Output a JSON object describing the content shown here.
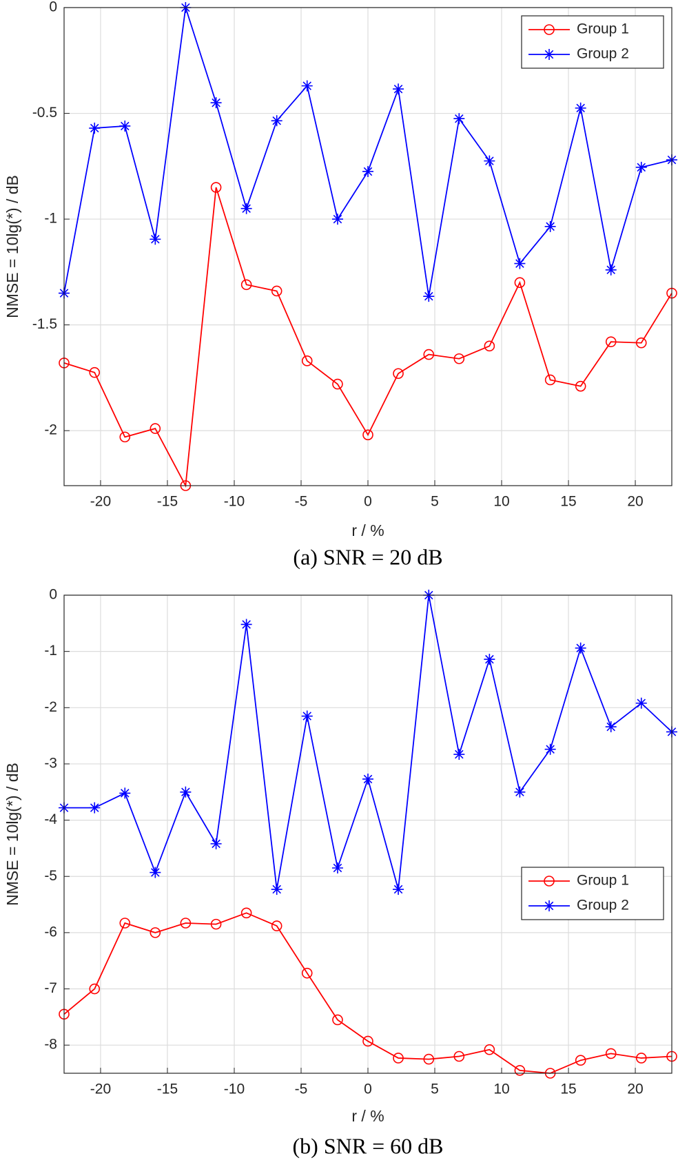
{
  "chart_data": [
    {
      "type": "line",
      "caption": "(a) SNR = 20 dB",
      "xlabel": "r / %",
      "ylabel": "NMSE = 10lg(*) / dB",
      "x": [
        -22.73,
        -20.45,
        -18.18,
        -15.91,
        -13.64,
        -11.36,
        -9.09,
        -6.82,
        -4.55,
        -2.27,
        0,
        2.27,
        4.55,
        6.82,
        9.09,
        11.36,
        13.64,
        15.91,
        18.18,
        20.45,
        22.73
      ],
      "xlim": [
        -22.73,
        22.73
      ],
      "xticks": [
        -20,
        -15,
        -10,
        -5,
        0,
        5,
        10,
        15,
        20
      ],
      "ylim": [
        -2.26,
        0
      ],
      "yticks": [
        -2,
        -1.5,
        -1,
        -0.5,
        0
      ],
      "grid": true,
      "legend": "northeast",
      "series": [
        {
          "name": "Group 1",
          "color": "#ff0000",
          "marker": "o",
          "values": [
            -1.68,
            -1.725,
            -2.03,
            -1.99,
            -2.26,
            -0.85,
            -1.31,
            -1.34,
            -1.67,
            -1.78,
            -2.02,
            -1.73,
            -1.64,
            -1.66,
            -1.6,
            -1.3,
            -1.76,
            -1.79,
            -1.58,
            -1.585,
            -1.35
          ]
        },
        {
          "name": "Group 2",
          "color": "#0000ff",
          "marker": "*",
          "values": [
            -1.35,
            -0.57,
            -0.56,
            -1.095,
            0,
            -0.45,
            -0.95,
            -0.535,
            -0.37,
            -1.0,
            -0.775,
            -0.385,
            -1.365,
            -0.525,
            -0.725,
            -1.21,
            -1.035,
            -0.475,
            -1.24,
            -0.755,
            -0.72
          ]
        }
      ]
    },
    {
      "type": "line",
      "caption": "(b) SNR = 60 dB",
      "xlabel": "r / %",
      "ylabel": "NMSE = 10lg(*) / dB",
      "x": [
        -22.73,
        -20.45,
        -18.18,
        -15.91,
        -13.64,
        -11.36,
        -9.09,
        -6.82,
        -4.55,
        -2.27,
        0,
        2.27,
        4.55,
        6.82,
        9.09,
        11.36,
        13.64,
        15.91,
        18.18,
        20.45,
        22.73
      ],
      "xlim": [
        -22.73,
        22.73
      ],
      "xticks": [
        -20,
        -15,
        -10,
        -5,
        0,
        5,
        10,
        15,
        20
      ],
      "ylim": [
        -8.5,
        0
      ],
      "yticks": [
        -8,
        -7,
        -6,
        -5,
        -4,
        -3,
        -2,
        -1,
        0
      ],
      "grid": true,
      "legend": "east",
      "series": [
        {
          "name": "Group 1",
          "color": "#ff0000",
          "marker": "o",
          "values": [
            -7.45,
            -7.0,
            -5.83,
            -6.0,
            -5.83,
            -5.85,
            -5.65,
            -5.88,
            -6.72,
            -7.55,
            -7.93,
            -8.23,
            -8.25,
            -8.2,
            -8.08,
            -8.45,
            -8.5,
            -8.27,
            -8.15,
            -8.23,
            -8.2
          ]
        },
        {
          "name": "Group 2",
          "color": "#0000ff",
          "marker": "*",
          "values": [
            -3.78,
            -3.78,
            -3.52,
            -4.93,
            -3.5,
            -4.42,
            -0.52,
            -5.23,
            -2.15,
            -4.85,
            -3.27,
            -5.23,
            0,
            -2.83,
            -1.14,
            -3.5,
            -2.74,
            -0.94,
            -2.34,
            -1.92,
            -2.43
          ]
        }
      ]
    }
  ]
}
